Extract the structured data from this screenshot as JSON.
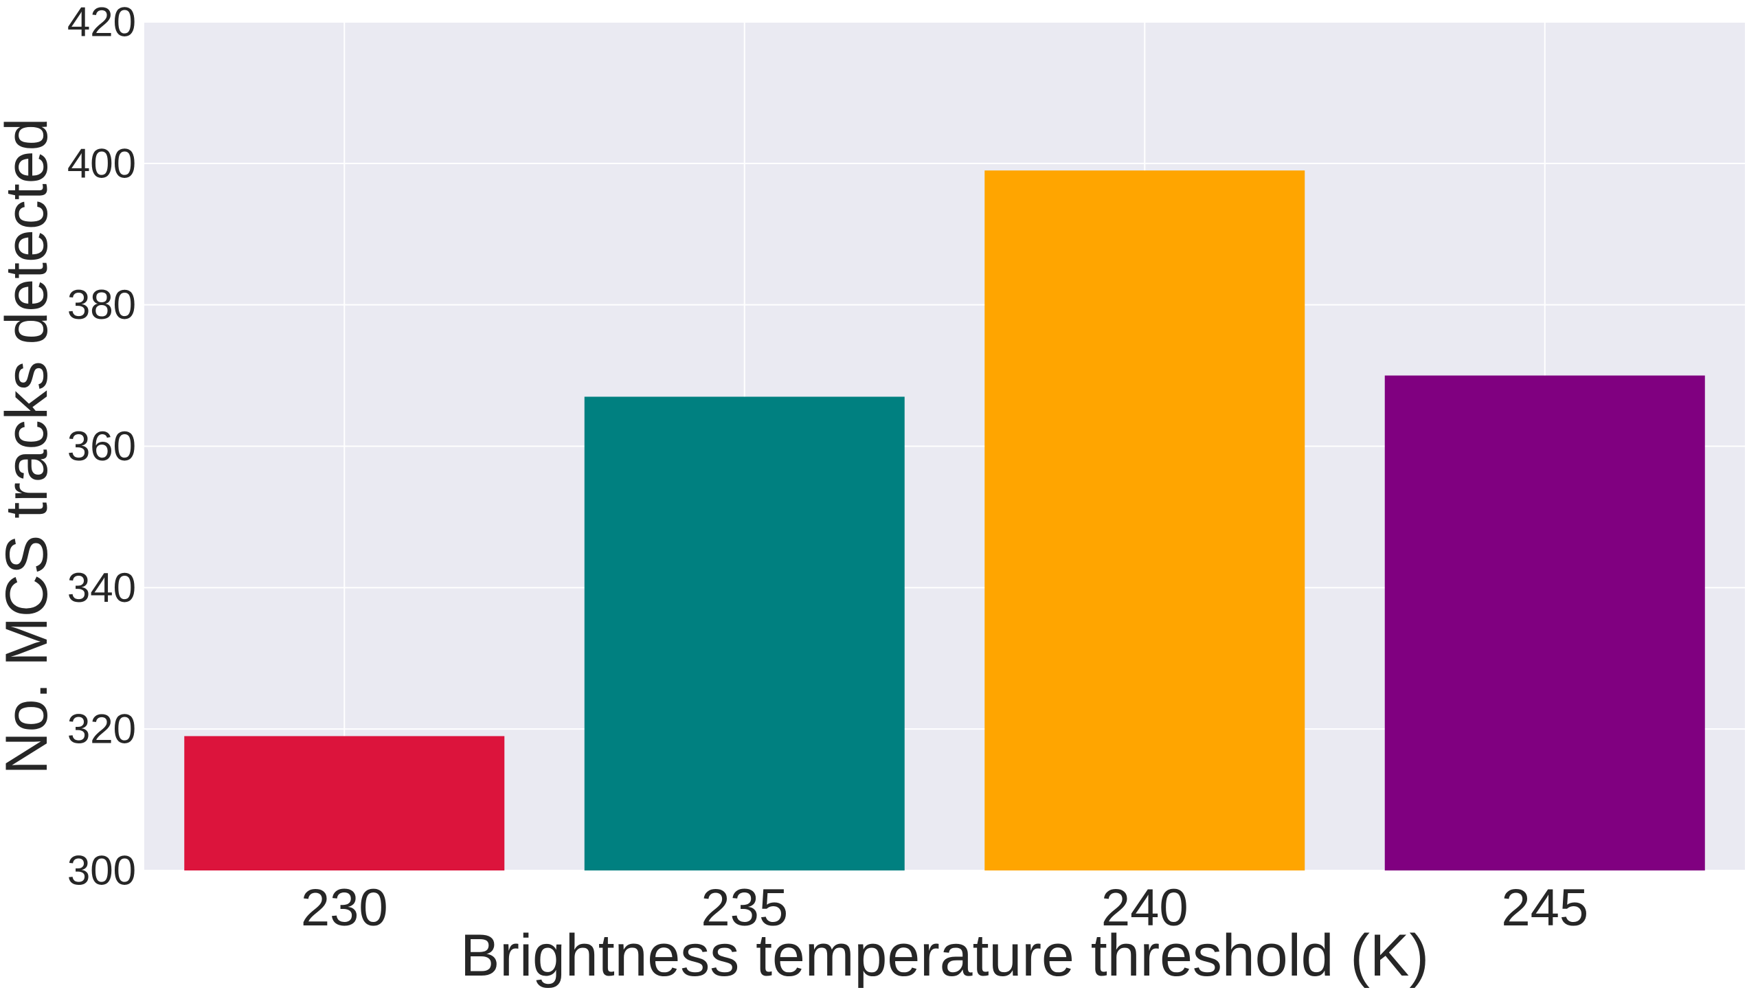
{
  "chart_data": {
    "type": "bar",
    "title": "",
    "xlabel": "Brightness temperature threshold (K)",
    "ylabel": "No. MCS tracks detected",
    "categories": [
      "230",
      "235",
      "240",
      "245"
    ],
    "values": [
      319,
      367,
      399,
      370
    ],
    "colors": [
      "#dc143c",
      "#008080",
      "#ffa500",
      "#800080"
    ],
    "ylim": [
      300,
      420
    ],
    "yticks": [
      300,
      320,
      340,
      360,
      380,
      400,
      420
    ],
    "ytick_labels": [
      "300",
      "320",
      "340",
      "360",
      "380",
      "400",
      "420"
    ],
    "grid": true,
    "background": "#eaeaf2",
    "grid_color": "#ffffff"
  }
}
